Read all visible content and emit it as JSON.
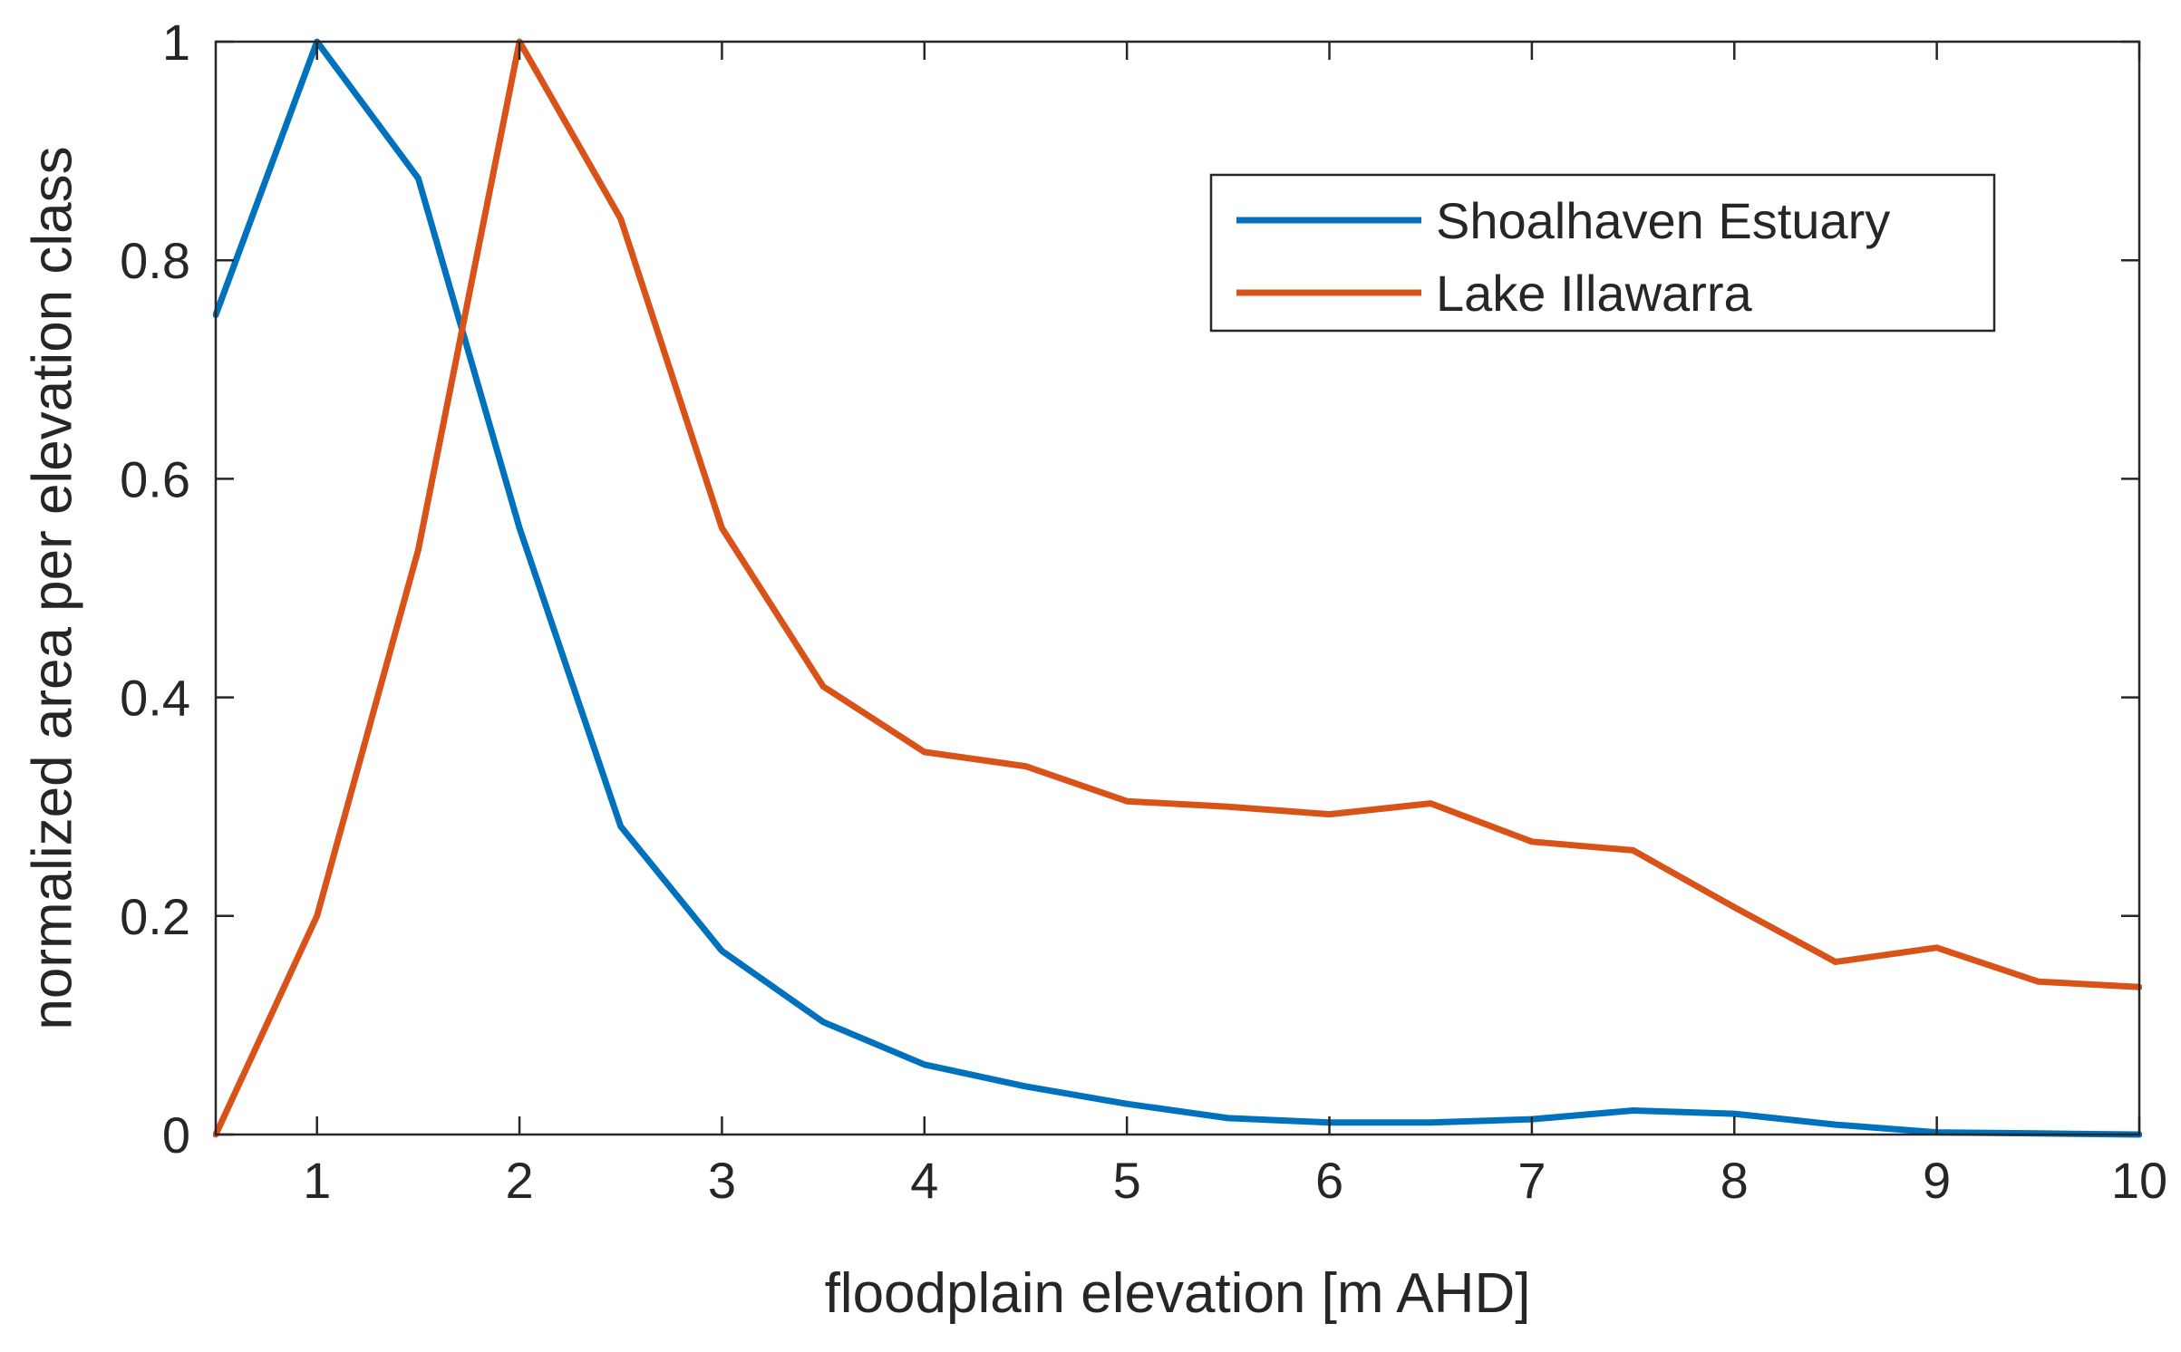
{
  "chart_data": {
    "type": "line",
    "title": "",
    "xlabel": "floodplain elevation [m AHD]",
    "ylabel": "normalized area per elevation class",
    "xlim": [
      0.5,
      10
    ],
    "ylim": [
      0,
      1
    ],
    "x_ticks": [
      1,
      2,
      3,
      4,
      5,
      6,
      7,
      8,
      9,
      10
    ],
    "y_ticks": [
      0,
      0.2,
      0.4,
      0.6,
      0.8,
      1
    ],
    "x_tick_labels": [
      "1",
      "2",
      "3",
      "4",
      "5",
      "6",
      "7",
      "8",
      "9",
      "10"
    ],
    "y_tick_labels": [
      "0",
      "0.2",
      "0.4",
      "0.6",
      "0.8",
      "1"
    ],
    "grid": false,
    "legend_position": "top-right",
    "x": [
      0.5,
      1,
      1.5,
      2,
      2.5,
      3,
      3.5,
      4,
      4.5,
      5,
      5.5,
      6,
      6.5,
      7,
      7.5,
      8,
      8.5,
      9,
      9.5,
      10
    ],
    "series": [
      {
        "name": "Shoalhaven Estuary",
        "color": "#0072BD",
        "values": [
          0.75,
          1.0,
          0.875,
          0.555,
          0.282,
          0.168,
          0.103,
          0.064,
          0.044,
          0.028,
          0.015,
          0.011,
          0.011,
          0.014,
          0.022,
          0.019,
          0.009,
          0.002,
          0.001,
          0.0
        ]
      },
      {
        "name": "Lake Illawarra",
        "color": "#D95319",
        "values": [
          0.0,
          0.2,
          0.535,
          1.0,
          0.838,
          0.555,
          0.41,
          0.35,
          0.337,
          0.305,
          0.3,
          0.293,
          0.303,
          0.268,
          0.26,
          0.208,
          0.158,
          0.171,
          0.14,
          0.135
        ]
      }
    ]
  }
}
